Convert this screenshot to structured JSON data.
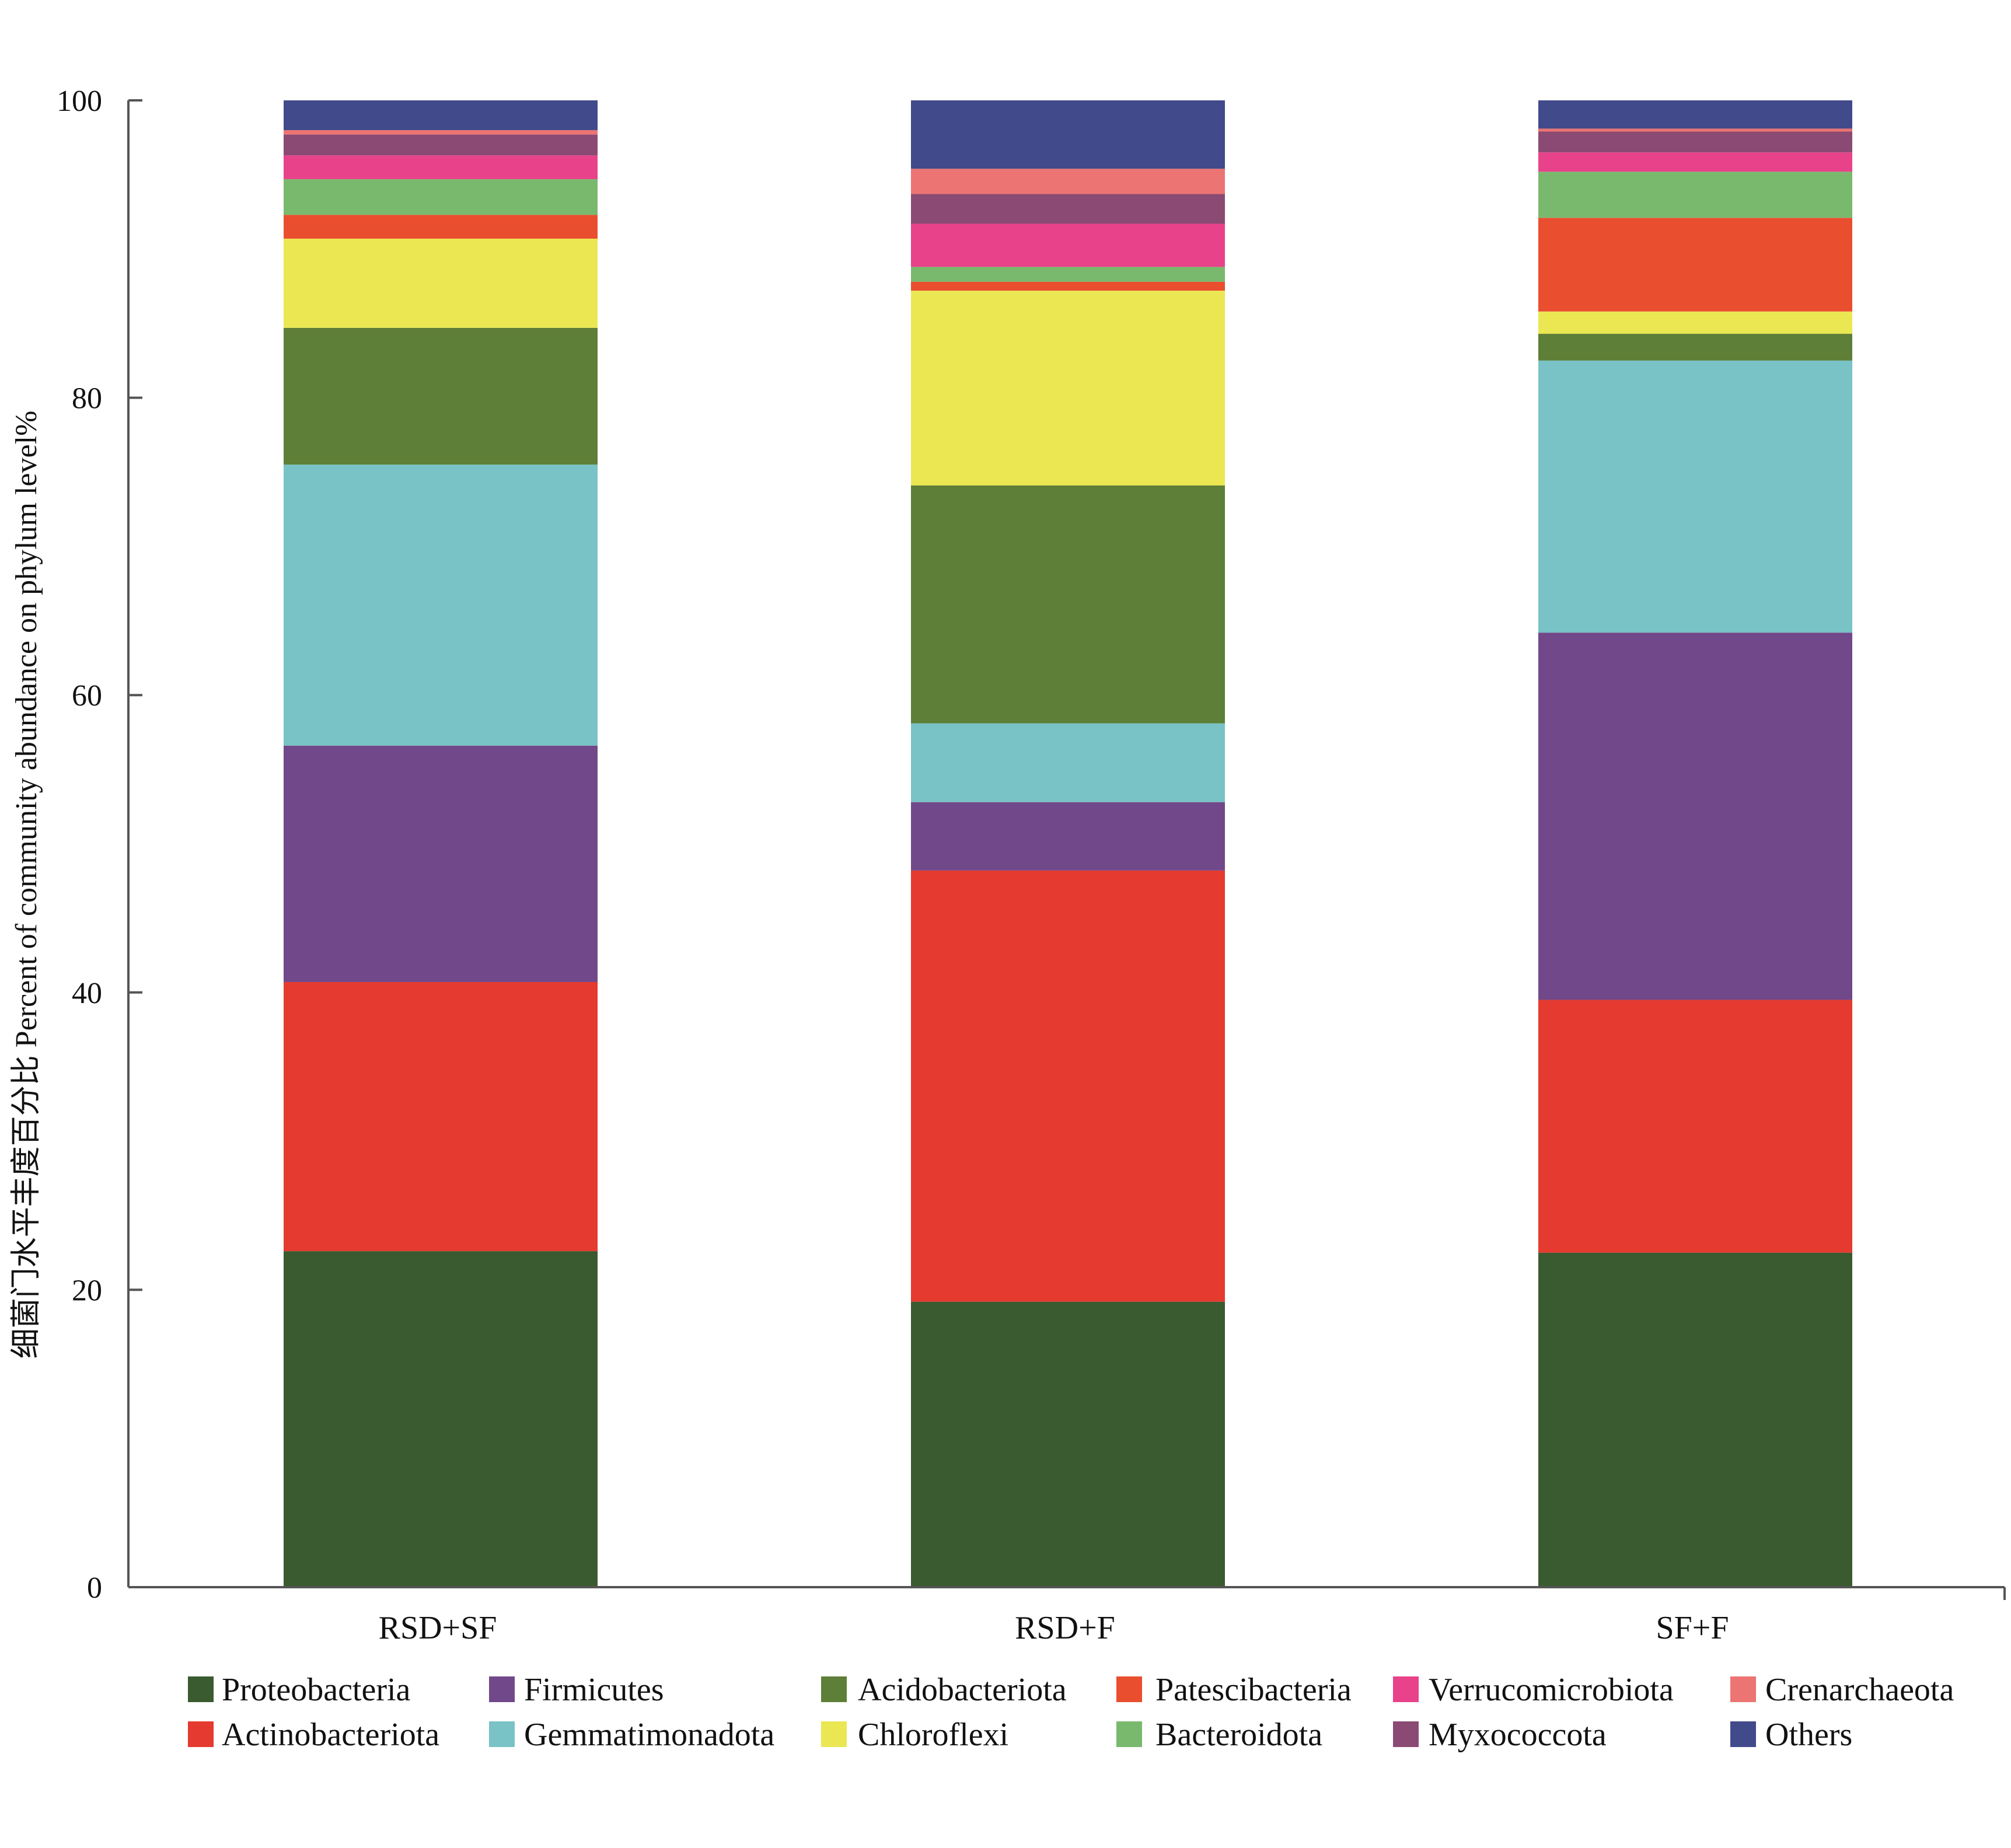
{
  "chart_data": {
    "type": "bar",
    "stacked": true,
    "title": "",
    "xlabel": "",
    "ylabel": "细菌门水平丰度百分比 Percent of community abundance on phylum level%",
    "ylim": [
      0,
      100
    ],
    "yticks": [
      0,
      20,
      40,
      60,
      80,
      100
    ],
    "grid": false,
    "legend_position": "bottom",
    "categories": [
      "RSD+SF",
      "RSD+F",
      "SF+F"
    ],
    "series": [
      {
        "name": "Proteobacteria",
        "color": "#3A5A30",
        "values": [
          22.6,
          19.2,
          22.5
        ]
      },
      {
        "name": "Actinobacteriota",
        "color": "#E53A2F",
        "values": [
          18.1,
          29.0,
          17.0
        ]
      },
      {
        "name": "Firmicutes",
        "color": "#71488A",
        "values": [
          15.9,
          4.6,
          24.7
        ]
      },
      {
        "name": "Gemmatimonadota",
        "color": "#79C2C5",
        "values": [
          18.9,
          5.3,
          18.3
        ]
      },
      {
        "name": "Acidobacteriota",
        "color": "#5E7F37",
        "values": [
          9.2,
          16.0,
          1.8
        ]
      },
      {
        "name": "Chloroflexi",
        "color": "#EAE753",
        "values": [
          6.0,
          13.1,
          1.5
        ]
      },
      {
        "name": "Patescibacteria",
        "color": "#E94E2F",
        "values": [
          1.6,
          0.6,
          6.3
        ]
      },
      {
        "name": "Bacteroidota",
        "color": "#79B96E",
        "values": [
          2.4,
          1.0,
          3.1
        ]
      },
      {
        "name": "Verrucomicrobiota",
        "color": "#E8428A",
        "values": [
          1.6,
          2.9,
          1.3
        ]
      },
      {
        "name": "Myxococcota",
        "color": "#8A4A73",
        "values": [
          1.4,
          2.0,
          1.4
        ]
      },
      {
        "name": "Crenarchaeota",
        "color": "#EC7472",
        "values": [
          0.3,
          1.7,
          0.2
        ]
      },
      {
        "name": "Others",
        "color": "#414A8B",
        "values": [
          2.0,
          4.6,
          1.9
        ]
      }
    ]
  }
}
